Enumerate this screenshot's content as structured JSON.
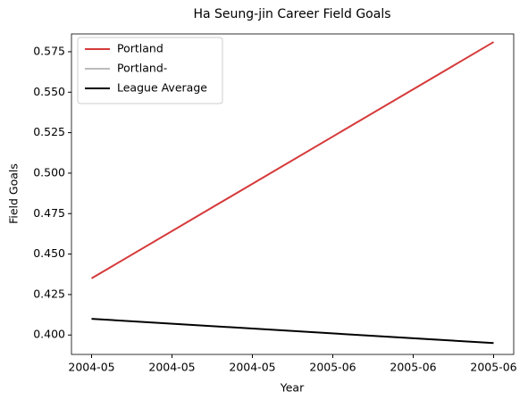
{
  "chart_data": {
    "type": "line",
    "title": "Ha Seung-jin Career Field Goals",
    "xlabel": "Year",
    "ylabel": "Field Goals",
    "x": [
      0,
      1
    ],
    "series": [
      {
        "name": "Portland",
        "color": "#d63a3a",
        "values": [
          0.435,
          0.581
        ]
      },
      {
        "name": "Portland-",
        "color": "#bbbbbb",
        "values": [
          null,
          null
        ]
      },
      {
        "name": "League Average",
        "color": "#000000",
        "values": [
          0.41,
          0.395
        ]
      }
    ],
    "xlim": [
      -0.05,
      1.05
    ],
    "xticks": [
      {
        "value": 0,
        "label": "2004-05"
      },
      {
        "value": 0.2,
        "label": "2004-05"
      },
      {
        "value": 0.4,
        "label": "2004-05"
      },
      {
        "value": 0.6,
        "label": "2005-06"
      },
      {
        "value": 0.8,
        "label": "2005-06"
      },
      {
        "value": 1,
        "label": "2005-06"
      }
    ],
    "ylim": [
      0.388,
      0.586
    ],
    "yticks": [
      {
        "value": 0.4,
        "label": "0.400"
      },
      {
        "value": 0.425,
        "label": "0.425"
      },
      {
        "value": 0.45,
        "label": "0.450"
      },
      {
        "value": 0.475,
        "label": "0.475"
      },
      {
        "value": 0.5,
        "label": "0.500"
      },
      {
        "value": 0.525,
        "label": "0.525"
      },
      {
        "value": 0.55,
        "label": "0.550"
      },
      {
        "value": 0.575,
        "label": "0.575"
      }
    ],
    "legend": "upper left",
    "grid": false
  }
}
